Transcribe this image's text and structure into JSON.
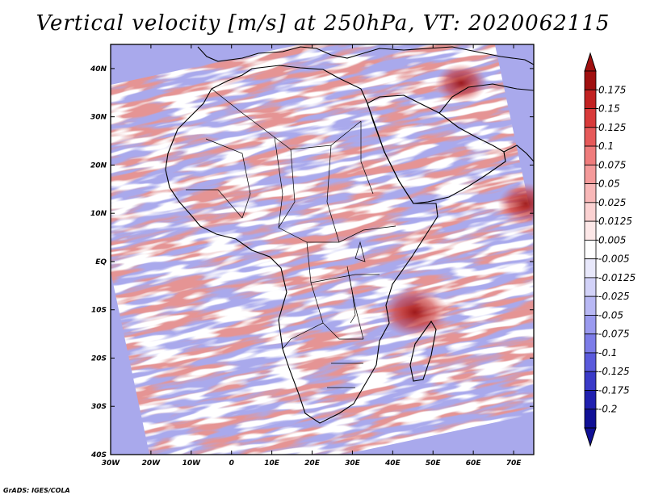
{
  "title": "Vertical velocity [m/s] at 250hPa, VT: 2020062115",
  "credit": "GrADS: IGES/COLA",
  "map": {
    "lon_range": [
      -30,
      75
    ],
    "lat_range": [
      -40,
      45
    ],
    "x_ticks": [
      {
        "lon": -30,
        "label": "30W"
      },
      {
        "lon": -20,
        "label": "20W"
      },
      {
        "lon": -10,
        "label": "10W"
      },
      {
        "lon": 0,
        "label": "0"
      },
      {
        "lon": 10,
        "label": "10E"
      },
      {
        "lon": 20,
        "label": "20E"
      },
      {
        "lon": 30,
        "label": "30E"
      },
      {
        "lon": 40,
        "label": "40E"
      },
      {
        "lon": 50,
        "label": "50E"
      },
      {
        "lon": 60,
        "label": "60E"
      },
      {
        "lon": 70,
        "label": "70E"
      }
    ],
    "y_ticks": [
      {
        "lat": 40,
        "label": "40N"
      },
      {
        "lat": 30,
        "label": "30N"
      },
      {
        "lat": 20,
        "label": "20N"
      },
      {
        "lat": 10,
        "label": "10N"
      },
      {
        "lat": 0,
        "label": "EQ"
      },
      {
        "lat": -10,
        "label": "10S"
      },
      {
        "lat": -20,
        "label": "20S"
      },
      {
        "lat": -30,
        "label": "30S"
      },
      {
        "lat": -40,
        "label": "40S"
      }
    ],
    "highlights": [
      {
        "lon": 45.5,
        "lat": -10.5,
        "strength": 0.18
      },
      {
        "lon": 73,
        "lat": 12,
        "strength": 0.12
      },
      {
        "lon": 57,
        "lat": 37,
        "strength": 0.1
      }
    ]
  },
  "colorbar": {
    "levels": [
      "0.175",
      "0.15",
      "0.125",
      "0.1",
      "0.075",
      "0.05",
      "0.025",
      "0.0125",
      "0.005",
      "-0.005",
      "-0.0125",
      "-0.025",
      "-0.05",
      "-0.075",
      "-0.1",
      "-0.125",
      "-0.175",
      "-0.2"
    ],
    "colors": [
      "#a01010",
      "#c22222",
      "#d83a3a",
      "#e65a5a",
      "#ef7c7c",
      "#f49a9a",
      "#f8b8b8",
      "#fbd2d2",
      "#fde8e8",
      "#ffffff",
      "#e8e8fb",
      "#d2d2f8",
      "#b8b8f4",
      "#9a9aef",
      "#7c7ce8",
      "#5a5adc",
      "#3a3ac8",
      "#2020b0",
      "#101096"
    ],
    "top_color": "#a01010",
    "bottom_color": "#101096"
  },
  "chart_data": {
    "type": "heatmap",
    "title": "Vertical velocity [m/s] at 250hPa, VT: 2020062115",
    "variable": "Vertical velocity",
    "units": "m/s",
    "pressure_level": "250hPa",
    "valid_time": "2020062115",
    "xlabel": "",
    "ylabel": "",
    "xlim": [
      -30,
      75
    ],
    "ylim": [
      -40,
      45
    ]
  }
}
